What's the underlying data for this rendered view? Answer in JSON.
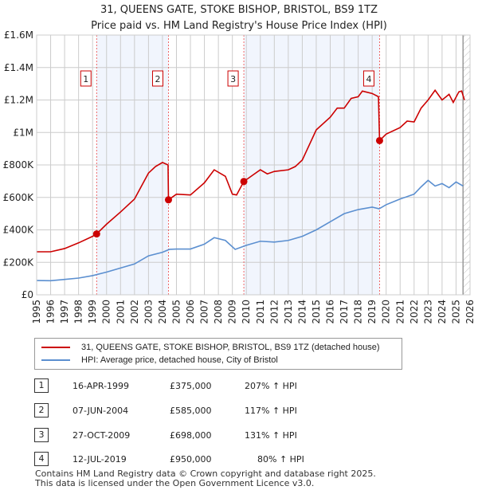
{
  "title": "31, QUEENS GATE, STOKE BISHOP, BRISTOL, BS9 1TZ",
  "subtitle": "Price paid vs. HM Land Registry's House Price Index (HPI)",
  "chart_data": {
    "type": "line",
    "title": "31, QUEENS GATE, STOKE BISHOP, BRISTOL, BS9 1TZ",
    "subtitle": "Price paid vs. HM Land Registry's House Price Index (HPI)",
    "xlim": [
      1995,
      2026
    ],
    "ylim": [
      0,
      1600000
    ],
    "x_ticks": [
      "1995",
      "1996",
      "1997",
      "1998",
      "1999",
      "2000",
      "2001",
      "2002",
      "2003",
      "2004",
      "2005",
      "2006",
      "2007",
      "2008",
      "2009",
      "2010",
      "2011",
      "2012",
      "2013",
      "2014",
      "2015",
      "2016",
      "2017",
      "2018",
      "2019",
      "2020",
      "2021",
      "2022",
      "2023",
      "2024",
      "2025",
      "2026"
    ],
    "y_ticks": [
      {
        "v": 0,
        "l": "£0"
      },
      {
        "v": 200000,
        "l": "£200K"
      },
      {
        "v": 400000,
        "l": "£400K"
      },
      {
        "v": 600000,
        "l": "£600K"
      },
      {
        "v": 800000,
        "l": "£800K"
      },
      {
        "v": 1000000,
        "l": "£1M"
      },
      {
        "v": 1200000,
        "l": "£1.2M"
      },
      {
        "v": 1400000,
        "l": "£1.4M"
      },
      {
        "v": 1600000,
        "l": "£1.6M"
      }
    ],
    "grid": true,
    "series": [
      {
        "name": "31, QUEENS GATE, STOKE BISHOP, BRISTOL, BS9 1TZ (detached house)",
        "color": "#cc0000",
        "x": [
          1995,
          1996,
          1997,
          1998,
          1999,
          1999.29,
          2000,
          2001,
          2002,
          2003,
          2003.5,
          2004,
          2004.4,
          2004.43,
          2005,
          2006,
          2007,
          2007.7,
          2008.5,
          2009,
          2009.3,
          2009.82,
          2010.5,
          2011,
          2011.5,
          2012,
          2013,
          2013.5,
          2014,
          2015,
          2016,
          2016.5,
          2017,
          2017.5,
          2018,
          2018.3,
          2019,
          2019.45,
          2019.53,
          2020,
          2021,
          2021.5,
          2022,
          2022.5,
          2023,
          2023.5,
          2024,
          2024.5,
          2024.8,
          2025.2,
          2025.4,
          2025.6
        ],
        "y": [
          265000,
          265000,
          285000,
          320000,
          360000,
          375000,
          435000,
          510000,
          590000,
          750000,
          790000,
          815000,
          800000,
          585000,
          620000,
          615000,
          690000,
          770000,
          730000,
          620000,
          615000,
          698000,
          740000,
          770000,
          745000,
          760000,
          770000,
          790000,
          830000,
          1016000,
          1094000,
          1150000,
          1150000,
          1210000,
          1220000,
          1255000,
          1240000,
          1220000,
          950000,
          990000,
          1030000,
          1070000,
          1065000,
          1150000,
          1200000,
          1260000,
          1200000,
          1235000,
          1185000,
          1250000,
          1255000,
          1200000
        ]
      },
      {
        "name": "HPI: Average price, detached house, City of Bristol",
        "color": "#5b8fd0",
        "x": [
          1995,
          1996,
          1997,
          1998,
          1999,
          2000,
          2001,
          2002,
          2003,
          2004,
          2004.5,
          2005,
          2006,
          2007,
          2007.7,
          2008.5,
          2009.2,
          2010,
          2011,
          2012,
          2013,
          2014,
          2015,
          2016,
          2017,
          2018,
          2019,
          2019.5,
          2020,
          2021,
          2022,
          2022.5,
          2023,
          2023.5,
          2024,
          2024.5,
          2025,
          2025.5
        ],
        "y": [
          88000,
          87000,
          95000,
          103000,
          118000,
          140000,
          165000,
          190000,
          240000,
          262000,
          280000,
          282000,
          282000,
          312000,
          352000,
          335000,
          280000,
          305000,
          330000,
          325000,
          335000,
          360000,
          400000,
          450000,
          500000,
          525000,
          540000,
          530000,
          555000,
          590000,
          620000,
          665000,
          705000,
          670000,
          685000,
          660000,
          695000,
          670000
        ]
      }
    ],
    "sales": [
      {
        "n": "1",
        "x": 1999.29,
        "y": 375000
      },
      {
        "n": "2",
        "x": 2004.43,
        "y": 585000
      },
      {
        "n": "3",
        "x": 2009.82,
        "y": 698000
      },
      {
        "n": "4",
        "x": 2019.53,
        "y": 950000
      }
    ],
    "shaded_ranges": [
      [
        1999.29,
        2004.43
      ],
      [
        2009.82,
        2019.53
      ]
    ],
    "forecast_from": 2025.5
  },
  "legend": {
    "property": "31, QUEENS GATE, STOKE BISHOP, BRISTOL, BS9 1TZ (detached house)",
    "hpi": "HPI: Average price, detached house, City of Bristol"
  },
  "transactions": [
    {
      "n": "1",
      "date": "16-APR-1999",
      "price": "£375,000",
      "hpi": "207% ↑ HPI"
    },
    {
      "n": "2",
      "date": "07-JUN-2004",
      "price": "£585,000",
      "hpi": "117% ↑ HPI"
    },
    {
      "n": "3",
      "date": "27-OCT-2009",
      "price": "£698,000",
      "hpi": "131% ↑ HPI"
    },
    {
      "n": "4",
      "date": "12-JUL-2019",
      "price": "£950,000",
      "hpi": "80% ↑ HPI"
    }
  ],
  "footer": [
    "Contains HM Land Registry data © Crown copyright and database right 2025.",
    "This data is licensed under the Open Government Licence v3.0."
  ]
}
